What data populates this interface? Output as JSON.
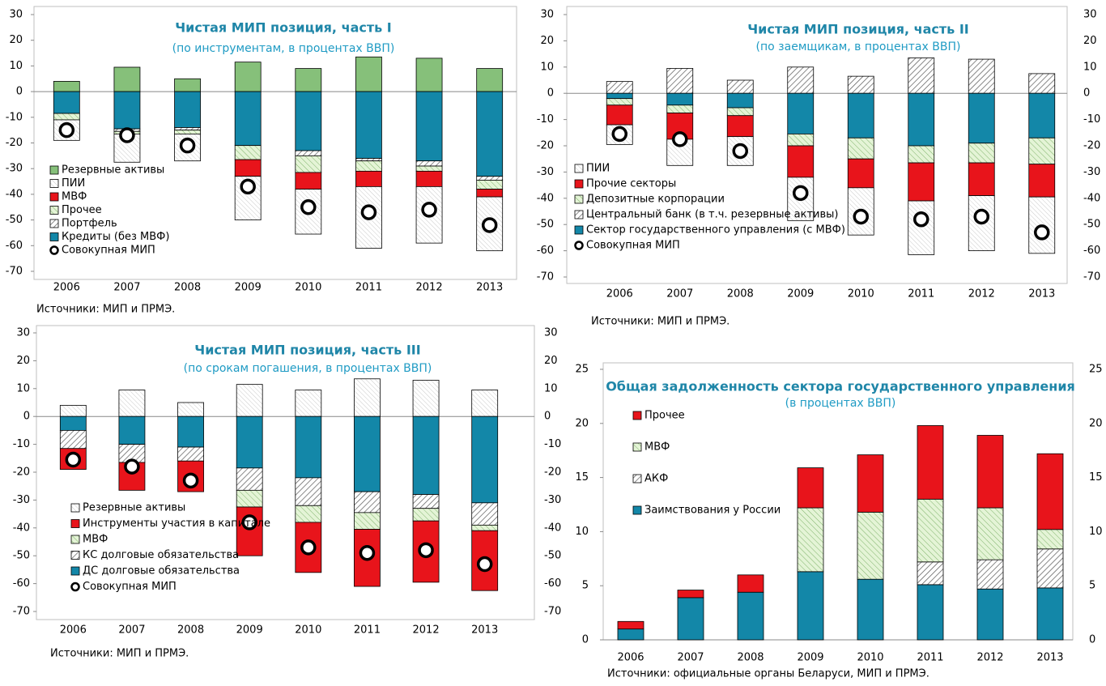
{
  "chart_data": [
    {
      "type": "bar",
      "title": "Чистая МИП позиция, часть I",
      "subtitle": "(по инструментам, в процентах ВВП)",
      "categories": [
        "2006",
        "2007",
        "2008",
        "2009",
        "2010",
        "2011",
        "2012",
        "2013"
      ],
      "series": [
        {
          "name": "Резервные активы",
          "color": "#86c07a",
          "values": [
            4,
            9.5,
            5,
            11.5,
            9,
            13.5,
            13,
            9
          ]
        },
        {
          "name": "ПИИ",
          "color": "#ffffff",
          "values": [
            -8,
            -11,
            -10.5,
            -17,
            -17.5,
            -24,
            -22,
            -21
          ]
        },
        {
          "name": "МВФ",
          "color": "#e8141b",
          "values": [
            0,
            0,
            0,
            -6.5,
            -6.5,
            -6,
            -6,
            -3
          ]
        },
        {
          "name": "Прочее",
          "color": "#d9f0c8",
          "values": [
            -2.5,
            -1,
            -1.5,
            -5.5,
            -6.5,
            -4,
            -2,
            -3.5
          ]
        },
        {
          "name": "Портфель",
          "color": "#ffffff",
          "values": [
            0,
            -1,
            -1,
            0,
            -2,
            -1,
            -2,
            -1.5
          ]
        },
        {
          "name": "Кредиты (без МВФ)",
          "color": "#1387a8",
          "values": [
            -8.5,
            -14.5,
            -14,
            -21,
            -23,
            -26,
            -27,
            -33
          ]
        },
        {
          "name": "Совокупная МИП",
          "type": "marker",
          "color": "#000000",
          "values": [
            -15,
            -17,
            -21,
            -37,
            -45,
            -47,
            -46,
            -52
          ]
        }
      ],
      "ylim": [
        -70,
        30
      ],
      "yticks": [
        -70,
        -60,
        -50,
        -40,
        -30,
        -20,
        -10,
        0,
        10,
        20,
        30
      ],
      "source": "Источники: МИП и ПРМЭ."
    },
    {
      "type": "bar",
      "title": "Чистая МИП позиция, часть II",
      "subtitle": "(по заемщикам, в процентах ВВП)",
      "categories": [
        "2006",
        "2007",
        "2008",
        "2009",
        "2010",
        "2011",
        "2012",
        "2013"
      ],
      "series": [
        {
          "name": "ПИИ",
          "color": "#ffffff",
          "values": [
            -7.5,
            -10,
            -11,
            -16.5,
            -18,
            -20.5,
            -21,
            -21.5
          ]
        },
        {
          "name": "Прочие секторы",
          "color": "#e8141b",
          "values": [
            -7.5,
            -10,
            -8,
            -12,
            -11,
            -14.5,
            -12.5,
            -12.5
          ]
        },
        {
          "name": "Депозитные корпорации",
          "color": "#d9f0c8",
          "values": [
            -2.5,
            -3,
            -3,
            -4.5,
            -8,
            -6.5,
            -7.5,
            -10
          ]
        },
        {
          "name": "Центральный банк (в т.ч. резервные активы)",
          "color": "#ffffff",
          "values": [
            4.5,
            9.5,
            5,
            10,
            6.5,
            13.5,
            13,
            7.5
          ]
        },
        {
          "name": "Сектор государственного управления (с МВФ)",
          "color": "#1387a8",
          "values": [
            -2,
            -4.5,
            -5.5,
            -15.5,
            -17,
            -20,
            -19,
            -17
          ]
        },
        {
          "name": "Совокупная МИП",
          "type": "marker",
          "color": "#000000",
          "values": [
            -15.5,
            -17.5,
            -22,
            -38,
            -47,
            -48,
            -47,
            -53
          ]
        }
      ],
      "ylim": [
        -70,
        30
      ],
      "yticks": [
        -70,
        -60,
        -50,
        -40,
        -30,
        -20,
        -10,
        0,
        10,
        20,
        30
      ],
      "source": "Источники: МИП и ПРМЭ."
    },
    {
      "type": "bar",
      "title": "Чистая МИП позиция, часть III",
      "subtitle": "(по срокам погашения, в процентах ВВП)",
      "categories": [
        "2006",
        "2007",
        "2008",
        "2009",
        "2010",
        "2011",
        "2012",
        "2013"
      ],
      "series": [
        {
          "name": "Резервные активы",
          "color": "#ffffff",
          "values": [
            4,
            9.5,
            5,
            11.5,
            9.5,
            13.5,
            13,
            9.5
          ]
        },
        {
          "name": "Инструменты участия в капитале",
          "color": "#e8141b",
          "values": [
            -7.5,
            -10,
            -11,
            -17.5,
            -18,
            -20.5,
            -22,
            -21.5
          ]
        },
        {
          "name": "МВФ",
          "color": "#d9f0c8",
          "values": [
            0,
            0,
            0,
            -6,
            -6,
            -6,
            -4.5,
            -2
          ]
        },
        {
          "name": "КС долговые обязательства",
          "color": "#ffffff",
          "values": [
            -6.5,
            -6.5,
            -5,
            -8,
            -10,
            -7.5,
            -5,
            -8
          ]
        },
        {
          "name": "ДС долговые обязательства",
          "color": "#1387a8",
          "values": [
            -5,
            -10,
            -11,
            -18.5,
            -22,
            -27,
            -28,
            -31
          ]
        },
        {
          "name": "Совокупная МИП",
          "type": "marker",
          "color": "#000000",
          "values": [
            -15.5,
            -18,
            -23,
            -38,
            -47,
            -49,
            -48,
            -53
          ]
        }
      ],
      "ylim": [
        -70,
        30
      ],
      "yticks": [
        -70,
        -60,
        -50,
        -40,
        -30,
        -20,
        -10,
        0,
        10,
        20,
        30
      ],
      "source": "Источники: МИП и ПРМЭ."
    },
    {
      "type": "bar",
      "title": "Общая задолженность сектора государственного управления",
      "subtitle": "(в процентах ВВП)",
      "categories": [
        "2006",
        "2007",
        "2008",
        "2009",
        "2010",
        "2011",
        "2012",
        "2013"
      ],
      "series": [
        {
          "name": "Прочее",
          "color": "#e8141b",
          "values": [
            0.7,
            0.7,
            1.6,
            3.7,
            5.3,
            6.8,
            6.7,
            7
          ]
        },
        {
          "name": "МВФ",
          "color": "#d9f0c8",
          "values": [
            0,
            0,
            0,
            5.9,
            6.2,
            5.8,
            4.8,
            1.8
          ]
        },
        {
          "name": "АКФ",
          "color": "#ffffff",
          "values": [
            0,
            0,
            0,
            0,
            0,
            2.1,
            2.7,
            3.6
          ]
        },
        {
          "name": "Заимствования у России",
          "color": "#1387a8",
          "values": [
            1,
            3.9,
            4.4,
            6.3,
            5.6,
            5.1,
            4.7,
            4.8
          ]
        }
      ],
      "ylim": [
        0,
        25
      ],
      "yticks": [
        0,
        5,
        10,
        15,
        20,
        25
      ],
      "source": "Источники: официальные органы Беларуси, МИП и ПРМЭ."
    }
  ]
}
